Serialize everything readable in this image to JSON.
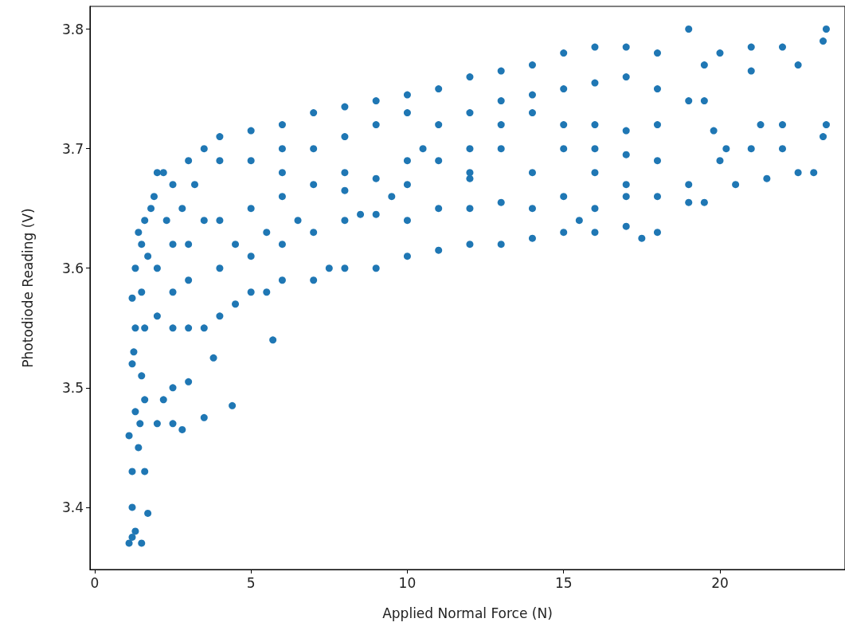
{
  "chart_data": {
    "type": "scatter",
    "xlabel": "Applied Normal Force (N)",
    "ylabel": "Photodiode Reading (V)",
    "xlim": [
      -0.15,
      24.0
    ],
    "ylim": [
      3.348,
      3.819
    ],
    "xticks": [
      0,
      5,
      10,
      15,
      20
    ],
    "yticks": [
      3.4,
      3.5,
      3.6,
      3.7,
      3.8
    ],
    "grid": false,
    "marker": "circle",
    "series": [
      {
        "color": "#1f77b4",
        "x": [
          1.1,
          1.2,
          1.5,
          1.3,
          1.2,
          1.7,
          1.2,
          1.6,
          1.1,
          1.4,
          1.3,
          1.6,
          1.2,
          1.5,
          1.3,
          1.6,
          1.2,
          1.5,
          1.3,
          1.7,
          1.4,
          1.6,
          1.8,
          2.0,
          1.9,
          1.5,
          1.25,
          1.45,
          2.0,
          2.5,
          2.8,
          3.5,
          4.4,
          3.0,
          2.5,
          2.2,
          3.8,
          5.7,
          2.0,
          2.5,
          3.0,
          3.5,
          4.0,
          4.5,
          5.0,
          5.5,
          6.0,
          7.0,
          8.0,
          9.0,
          10.0,
          11.0,
          12.0,
          13.0,
          14.0,
          15.0,
          16.0,
          17.0,
          18.0,
          17.5,
          2.5,
          3,
          4,
          5,
          6,
          7,
          8,
          9,
          10,
          11,
          12,
          13,
          14,
          15,
          16,
          17,
          18,
          19,
          19.5,
          15.5,
          3,
          4,
          5,
          6,
          8,
          10,
          12,
          14,
          16,
          18,
          20,
          21,
          22,
          23.3,
          23.4,
          22.5,
          23,
          21.5,
          20.5,
          19,
          17,
          2.2,
          2.5,
          3,
          3.5,
          4,
          5,
          6,
          7,
          8,
          9,
          10,
          11,
          12,
          13,
          14,
          15,
          16,
          17,
          19,
          18,
          20,
          21,
          22,
          23.3,
          23.4,
          22.5,
          21,
          19.5,
          4,
          5,
          6,
          7,
          8,
          9,
          10,
          11,
          12,
          13,
          14,
          15,
          16,
          17,
          18,
          19,
          19.5,
          16,
          17,
          18,
          19.8,
          15,
          14,
          13,
          12,
          11,
          10,
          9,
          8,
          7,
          6,
          15,
          16,
          17,
          20.2,
          21.3,
          22,
          13,
          12,
          10.5,
          8.5,
          7.5,
          9.5,
          6.5,
          5.5,
          4.5,
          3.5,
          2.5,
          2.0,
          2.8,
          3.2,
          2.3
        ],
        "values": [
          3.37,
          3.375,
          3.37,
          3.38,
          3.4,
          3.395,
          3.43,
          3.43,
          3.46,
          3.45,
          3.48,
          3.49,
          3.52,
          3.51,
          3.55,
          3.55,
          3.575,
          3.58,
          3.6,
          3.61,
          3.63,
          3.64,
          3.65,
          3.68,
          3.66,
          3.62,
          3.53,
          3.47,
          3.47,
          3.47,
          3.465,
          3.475,
          3.485,
          3.505,
          3.5,
          3.49,
          3.525,
          3.54,
          3.56,
          3.55,
          3.55,
          3.55,
          3.56,
          3.57,
          3.58,
          3.58,
          3.59,
          3.59,
          3.6,
          3.6,
          3.61,
          3.615,
          3.62,
          3.62,
          3.625,
          3.63,
          3.63,
          3.635,
          3.63,
          3.625,
          3.58,
          3.59,
          3.6,
          3.61,
          3.62,
          3.63,
          3.64,
          3.645,
          3.64,
          3.65,
          3.65,
          3.655,
          3.65,
          3.66,
          3.65,
          3.66,
          3.66,
          3.655,
          3.655,
          3.64,
          3.62,
          3.64,
          3.65,
          3.66,
          3.665,
          3.67,
          3.675,
          3.68,
          3.68,
          3.69,
          3.69,
          3.7,
          3.7,
          3.71,
          3.72,
          3.68,
          3.68,
          3.675,
          3.67,
          3.67,
          3.67,
          3.68,
          3.67,
          3.69,
          3.7,
          3.71,
          3.715,
          3.72,
          3.73,
          3.735,
          3.74,
          3.745,
          3.75,
          3.76,
          3.765,
          3.77,
          3.78,
          3.785,
          3.785,
          3.8,
          3.78,
          3.78,
          3.785,
          3.785,
          3.79,
          3.8,
          3.77,
          3.765,
          3.77,
          3.69,
          3.69,
          3.7,
          3.7,
          3.71,
          3.72,
          3.73,
          3.72,
          3.73,
          3.74,
          3.745,
          3.75,
          3.755,
          3.76,
          3.75,
          3.74,
          3.74,
          3.72,
          3.715,
          3.72,
          3.715,
          3.72,
          3.73,
          3.72,
          3.7,
          3.69,
          3.69,
          3.675,
          3.68,
          3.67,
          3.68,
          3.7,
          3.7,
          3.695,
          3.7,
          3.72,
          3.72,
          3.7,
          3.68,
          3.7,
          3.645,
          3.6,
          3.66,
          3.64,
          3.63,
          3.62,
          3.64,
          3.62,
          3.6,
          3.65,
          3.67,
          3.64
        ]
      }
    ]
  }
}
